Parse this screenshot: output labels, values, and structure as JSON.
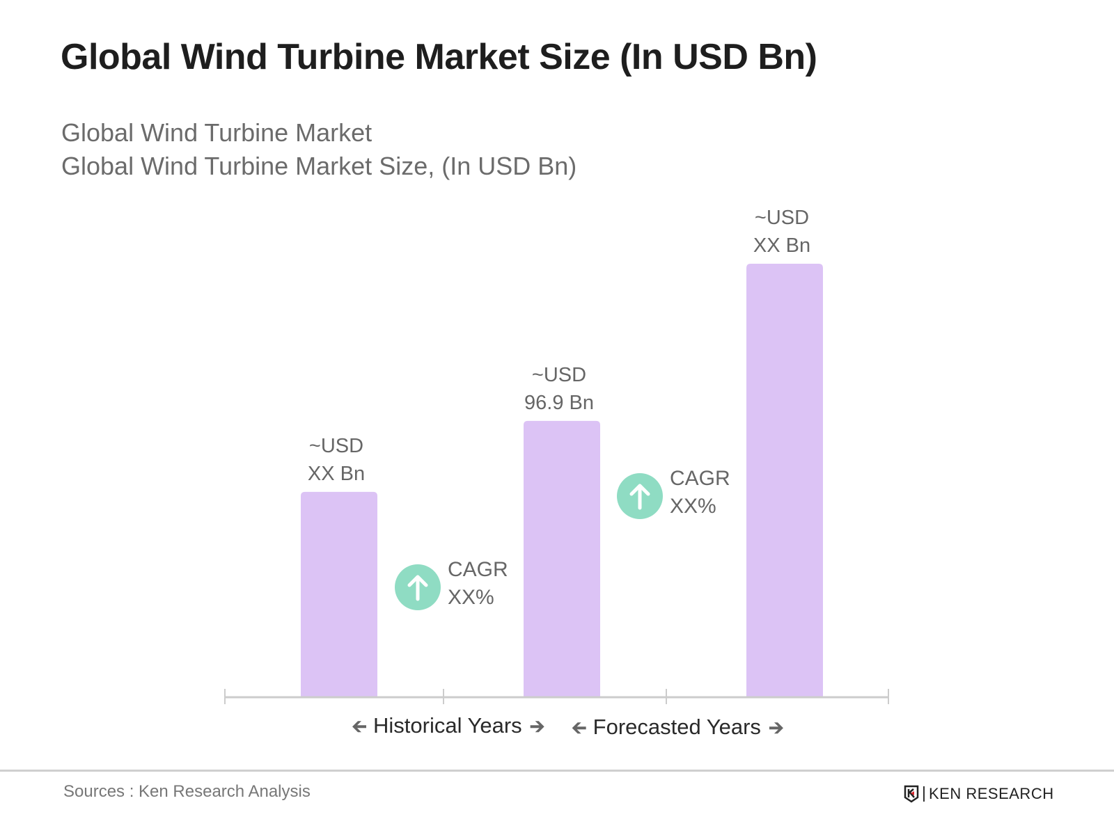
{
  "title": "Global Wind Turbine Market Size (In USD Bn)",
  "subtitle_lines": [
    "Global Wind Turbine Market",
    "Global Wind Turbine Market Size, (In USD Bn)"
  ],
  "chart_data": {
    "type": "bar",
    "title": "Global Wind Turbine Market Size (In USD Bn)",
    "categories": [
      "",
      "",
      ""
    ],
    "values": [
      72,
      96.9,
      152
    ],
    "data_labels": [
      {
        "line1": "~USD",
        "line2": "XX Bn"
      },
      {
        "line1": "~USD",
        "line2": "96.9  Bn"
      },
      {
        "line1": "~USD",
        "line2": "XX Bn"
      }
    ],
    "ylim": [
      0,
      160
    ],
    "grid": false,
    "bar_color": "#dcc3f5",
    "cagr": [
      {
        "line1": "CAGR",
        "line2": "XX%",
        "icon": "arrow-up-circle-icon",
        "color": "#8fdcc3"
      },
      {
        "line1": "CAGR",
        "line2": "XX%",
        "icon": "arrow-up-circle-icon",
        "color": "#8fdcc3"
      }
    ],
    "periods": [
      {
        "label": "Historical Years"
      },
      {
        "label": "Forecasted Years"
      }
    ]
  },
  "footer": {
    "source": "Sources : Ken Research Analysis",
    "logo_text": "KEN RESEARCH"
  }
}
